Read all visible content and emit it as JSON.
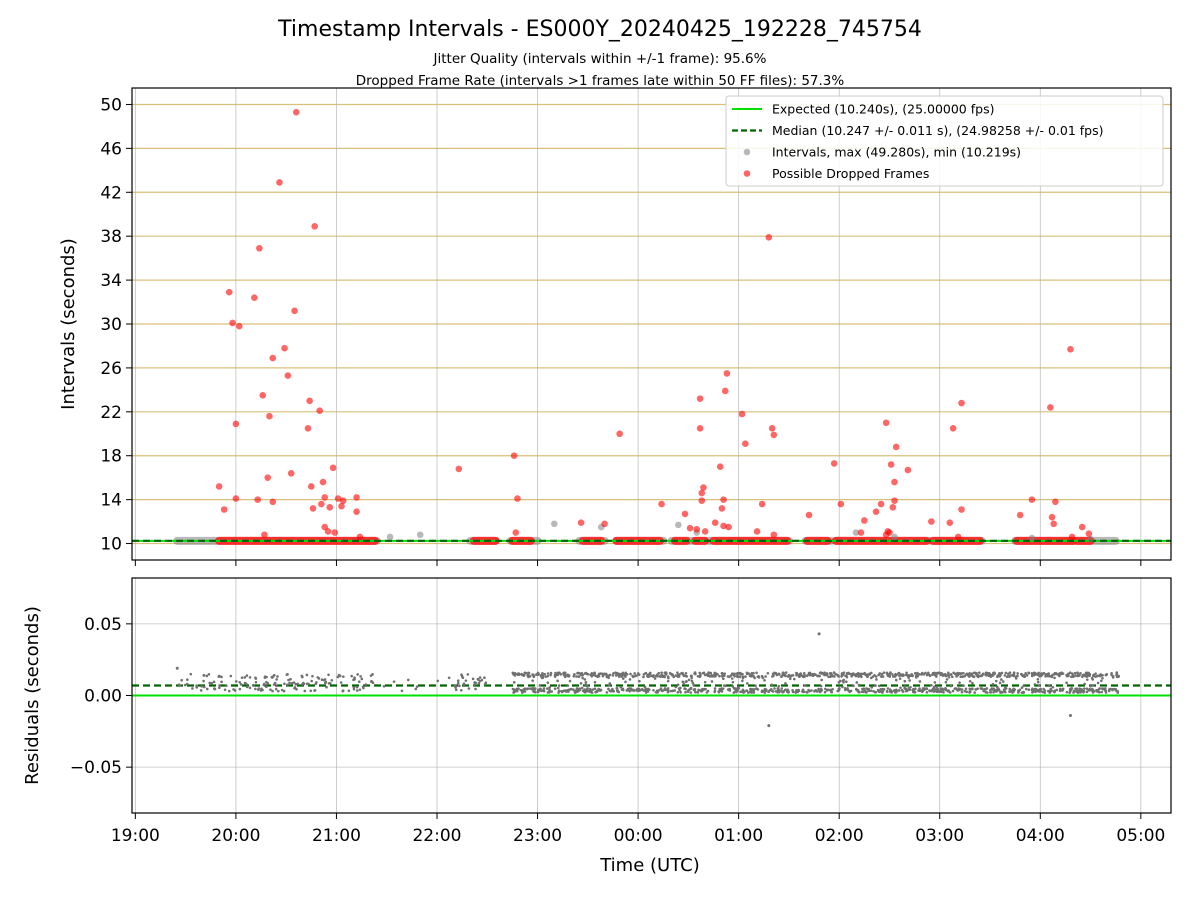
{
  "figure": {
    "title": "Timestamp Intervals - ES000Y_20240425_192228_745754",
    "subtitle_1": "Jitter Quality (intervals within +/-1 frame): 95.6%",
    "subtitle_2": "Dropped Frame Rate (intervals >1 frames late within 50 FF files): 57.3%"
  },
  "chart_data": [
    {
      "type": "scatter",
      "ylabel": "Intervals (seconds)",
      "xlabel": "",
      "ylim": [
        8.5,
        51.5
      ],
      "yticks": [
        10,
        14,
        18,
        22,
        26,
        30,
        34,
        38,
        42,
        46,
        50
      ],
      "ytick_labels": [
        "10",
        "14",
        "18",
        "22",
        "26",
        "30",
        "34",
        "38",
        "42",
        "46",
        "50"
      ],
      "grid": "on",
      "gridline_color": "#d8c07a",
      "legend": {
        "placement": "top-right",
        "entries": [
          {
            "label": "Expected (10.240s), (25.00000 fps)",
            "color": "#00e000",
            "style": "solid-line"
          },
          {
            "label": "Median (10.247 +/- 0.011 s), (24.98258 +/- 0.01 fps)",
            "color": "#006400",
            "style": "dashed-line"
          },
          {
            "label": "Intervals, max (49.280s), min (10.219s)",
            "color": "#808080",
            "style": "dot"
          },
          {
            "label": "Possible Dropped Frames",
            "color": "#ff0000",
            "style": "dot"
          }
        ]
      },
      "expected_interval": 10.24,
      "median_interval": 10.247,
      "baseline_segments": [
        {
          "start": "19:25",
          "end": "21:24"
        },
        {
          "start": "22:20",
          "end": "22:35"
        },
        {
          "start": "22:44",
          "end": "23:00"
        },
        {
          "start": "23:25",
          "end": "23:40"
        },
        {
          "start": "23:47",
          "end": "24:15"
        },
        {
          "start": "24:20",
          "end": "25:30"
        },
        {
          "start": "25:40",
          "end": "25:55"
        },
        {
          "start": "25:58",
          "end": "26:53"
        },
        {
          "start": "26:55",
          "end": "27:25"
        },
        {
          "start": "27:45",
          "end": "28:45"
        }
      ],
      "gray_points": [
        {
          "x": "21:32",
          "y": 10.6
        },
        {
          "x": "21:50",
          "y": 10.8
        },
        {
          "x": "23:10",
          "y": 11.8
        },
        {
          "x": "23:38",
          "y": 11.5
        },
        {
          "x": "24:24",
          "y": 11.7
        },
        {
          "x": "24:35",
          "y": 11.0
        },
        {
          "x": "26:10",
          "y": 11.0
        },
        {
          "x": "26:33",
          "y": 10.6
        },
        {
          "x": "27:55",
          "y": 10.5
        },
        {
          "x": "28:30",
          "y": 10.4
        }
      ],
      "dropped_points": [
        {
          "x": "19:50",
          "y": 15.2
        },
        {
          "x": "19:53",
          "y": 13.1
        },
        {
          "x": "19:56",
          "y": 32.9
        },
        {
          "x": "19:58",
          "y": 30.1
        },
        {
          "x": "20:00",
          "y": 20.9
        },
        {
          "x": "20:00",
          "y": 14.1
        },
        {
          "x": "20:02",
          "y": 29.8
        },
        {
          "x": "20:11",
          "y": 32.4
        },
        {
          "x": "20:13",
          "y": 14.0
        },
        {
          "x": "20:14",
          "y": 36.9
        },
        {
          "x": "20:16",
          "y": 23.5
        },
        {
          "x": "20:17",
          "y": 10.8
        },
        {
          "x": "20:19",
          "y": 16.0
        },
        {
          "x": "20:20",
          "y": 21.6
        },
        {
          "x": "20:22",
          "y": 26.9
        },
        {
          "x": "20:22",
          "y": 13.8
        },
        {
          "x": "20:26",
          "y": 42.9
        },
        {
          "x": "20:29",
          "y": 27.8
        },
        {
          "x": "20:31",
          "y": 25.3
        },
        {
          "x": "20:33",
          "y": 16.4
        },
        {
          "x": "20:35",
          "y": 31.2
        },
        {
          "x": "20:36",
          "y": 49.3
        },
        {
          "x": "20:43",
          "y": 20.5
        },
        {
          "x": "20:44",
          "y": 23.0
        },
        {
          "x": "20:45",
          "y": 15.2
        },
        {
          "x": "20:46",
          "y": 13.2
        },
        {
          "x": "20:47",
          "y": 38.9
        },
        {
          "x": "20:50",
          "y": 22.1
        },
        {
          "x": "20:51",
          "y": 13.6
        },
        {
          "x": "20:52",
          "y": 15.6
        },
        {
          "x": "20:53",
          "y": 14.2
        },
        {
          "x": "20:53",
          "y": 11.5
        },
        {
          "x": "20:55",
          "y": 11.1
        },
        {
          "x": "20:56",
          "y": 13.3
        },
        {
          "x": "20:58",
          "y": 16.9
        },
        {
          "x": "20:59",
          "y": 11.0
        },
        {
          "x": "21:01",
          "y": 14.1
        },
        {
          "x": "21:03",
          "y": 13.4
        },
        {
          "x": "21:04",
          "y": 13.9
        },
        {
          "x": "21:12",
          "y": 14.2
        },
        {
          "x": "21:12",
          "y": 12.9
        },
        {
          "x": "21:14",
          "y": 10.6
        },
        {
          "x": "22:13",
          "y": 16.8
        },
        {
          "x": "22:46",
          "y": 18.0
        },
        {
          "x": "22:47",
          "y": 11.0
        },
        {
          "x": "22:48",
          "y": 14.1
        },
        {
          "x": "23:26",
          "y": 11.9
        },
        {
          "x": "23:40",
          "y": 11.8
        },
        {
          "x": "23:49",
          "y": 20.0
        },
        {
          "x": "24:14",
          "y": 13.6
        },
        {
          "x": "24:28",
          "y": 12.7
        },
        {
          "x": "24:31",
          "y": 11.4
        },
        {
          "x": "24:35",
          "y": 11.3
        },
        {
          "x": "24:37",
          "y": 20.5
        },
        {
          "x": "24:37",
          "y": 23.2
        },
        {
          "x": "24:38",
          "y": 14.6
        },
        {
          "x": "24:38",
          "y": 13.9
        },
        {
          "x": "24:39",
          "y": 15.1
        },
        {
          "x": "24:40",
          "y": 11.1
        },
        {
          "x": "24:46",
          "y": 11.9
        },
        {
          "x": "24:49",
          "y": 17.0
        },
        {
          "x": "24:50",
          "y": 13.2
        },
        {
          "x": "24:51",
          "y": 14.0
        },
        {
          "x": "24:51",
          "y": 11.6
        },
        {
          "x": "24:52",
          "y": 23.9
        },
        {
          "x": "24:53",
          "y": 25.5
        },
        {
          "x": "24:54",
          "y": 11.5
        },
        {
          "x": "25:02",
          "y": 21.8
        },
        {
          "x": "25:04",
          "y": 19.1
        },
        {
          "x": "25:11",
          "y": 11.1
        },
        {
          "x": "25:14",
          "y": 13.6
        },
        {
          "x": "25:18",
          "y": 37.9
        },
        {
          "x": "25:20",
          "y": 20.5
        },
        {
          "x": "25:21",
          "y": 19.9
        },
        {
          "x": "25:21",
          "y": 10.8
        },
        {
          "x": "25:42",
          "y": 12.6
        },
        {
          "x": "25:57",
          "y": 17.3
        },
        {
          "x": "26:01",
          "y": 13.6
        },
        {
          "x": "26:13",
          "y": 11.0
        },
        {
          "x": "26:15",
          "y": 12.1
        },
        {
          "x": "26:22",
          "y": 12.9
        },
        {
          "x": "26:25",
          "y": 13.6
        },
        {
          "x": "26:28",
          "y": 21.0
        },
        {
          "x": "26:28",
          "y": 10.8
        },
        {
          "x": "26:29",
          "y": 11.1
        },
        {
          "x": "26:30",
          "y": 11.0
        },
        {
          "x": "26:31",
          "y": 17.2
        },
        {
          "x": "26:32",
          "y": 13.3
        },
        {
          "x": "26:33",
          "y": 15.6
        },
        {
          "x": "26:33",
          "y": 13.9
        },
        {
          "x": "26:34",
          "y": 18.8
        },
        {
          "x": "26:41",
          "y": 16.7
        },
        {
          "x": "26:55",
          "y": 12.0
        },
        {
          "x": "27:06",
          "y": 11.9
        },
        {
          "x": "27:08",
          "y": 20.5
        },
        {
          "x": "27:11",
          "y": 10.6
        },
        {
          "x": "27:13",
          "y": 13.1
        },
        {
          "x": "27:13",
          "y": 22.8
        },
        {
          "x": "27:48",
          "y": 12.6
        },
        {
          "x": "27:55",
          "y": 14.0
        },
        {
          "x": "28:06",
          "y": 22.4
        },
        {
          "x": "28:07",
          "y": 12.4
        },
        {
          "x": "28:08",
          "y": 11.8
        },
        {
          "x": "28:09",
          "y": 13.8
        },
        {
          "x": "28:18",
          "y": 27.7
        },
        {
          "x": "28:19",
          "y": 10.6
        },
        {
          "x": "28:25",
          "y": 11.5
        },
        {
          "x": "28:29",
          "y": 10.9
        }
      ]
    },
    {
      "type": "scatter",
      "ylabel": "Residuals (seconds)",
      "xlabel": "Time (UTC)",
      "ylim": [
        -0.082,
        0.082
      ],
      "yticks": [
        0.05,
        0.0,
        -0.05
      ],
      "ytick_labels": [
        "0.05",
        "0.00",
        "−0.05"
      ],
      "xlim": [
        "18:58",
        "29:18"
      ],
      "xtick_labels": [
        "19:00",
        "20:00",
        "21:00",
        "22:00",
        "23:00",
        "00:00",
        "01:00",
        "02:00",
        "03:00",
        "04:00",
        "05:00"
      ],
      "grid": "on",
      "zero_line": 0.0,
      "median_residual": 0.007,
      "residual_bands": [
        {
          "start": "19:25",
          "end": "22:30",
          "low": -0.001,
          "high": 0.015,
          "note": "sparse"
        },
        {
          "start": "22:45",
          "end": "28:47",
          "low": 0.002,
          "high": 0.016,
          "note": "dense"
        }
      ],
      "outliers": [
        {
          "x": "19:25",
          "y": 0.019
        },
        {
          "x": "25:18",
          "y": -0.021
        },
        {
          "x": "25:48",
          "y": 0.043
        },
        {
          "x": "28:18",
          "y": -0.014
        }
      ]
    }
  ]
}
